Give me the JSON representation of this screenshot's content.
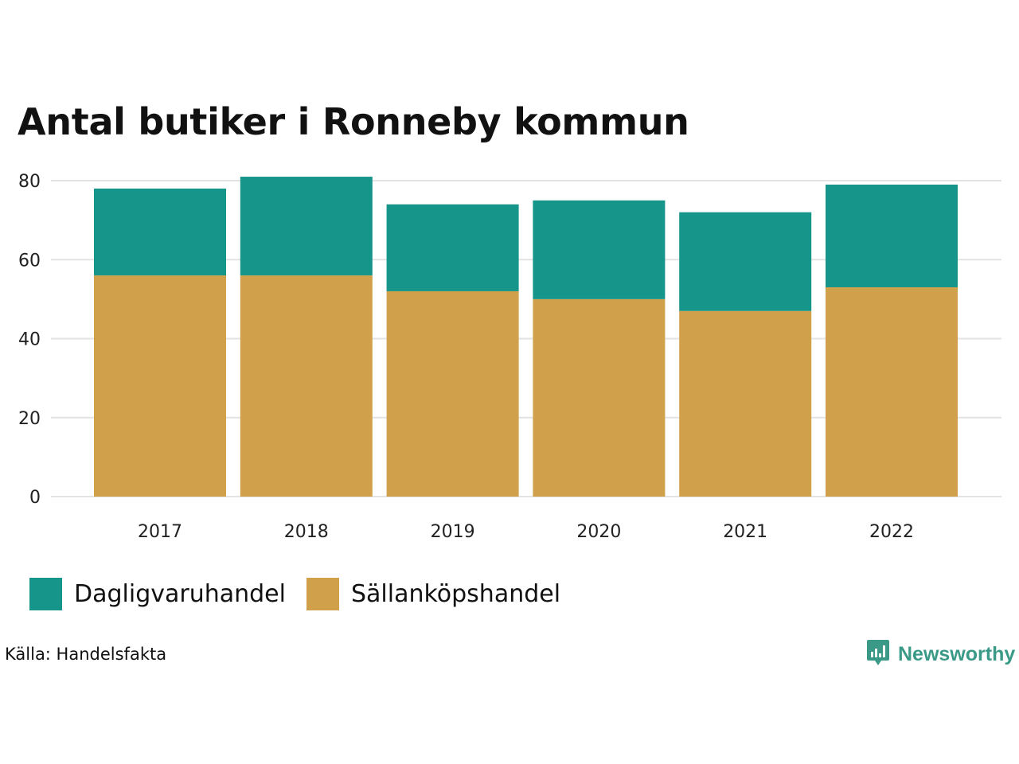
{
  "title": "Antal butiker i Ronneby kommun",
  "source": "Källa: Handelsfakta",
  "brand": {
    "name": "Newsworthy",
    "icon": "newsworthy-logo-icon"
  },
  "colors": {
    "dagligvaruhandel": "#16968a",
    "sallankopshandel": "#d1a04a",
    "grid": "#e3e3e3",
    "text": "#111111",
    "brand": "#3a9a87"
  },
  "legend": [
    {
      "label": "Dagligvaruhandel",
      "color": "#16968a"
    },
    {
      "label": "Sällanköpshandel",
      "color": "#d1a04a"
    }
  ],
  "chart_data": {
    "type": "bar",
    "stacked": true,
    "title": "Antal butiker i Ronneby kommun",
    "categories": [
      "2017",
      "2018",
      "2019",
      "2020",
      "2021",
      "2022"
    ],
    "series": [
      {
        "name": "Sällanköpshandel",
        "values": [
          56,
          56,
          52,
          50,
          47,
          53
        ]
      },
      {
        "name": "Dagligvaruhandel",
        "values": [
          22,
          25,
          22,
          25,
          25,
          26
        ]
      }
    ],
    "ylim": [
      0,
      80
    ],
    "yticks": [
      "0",
      "20",
      "40",
      "60",
      "80"
    ],
    "grid": true,
    "legend_position": "bottom-left"
  }
}
